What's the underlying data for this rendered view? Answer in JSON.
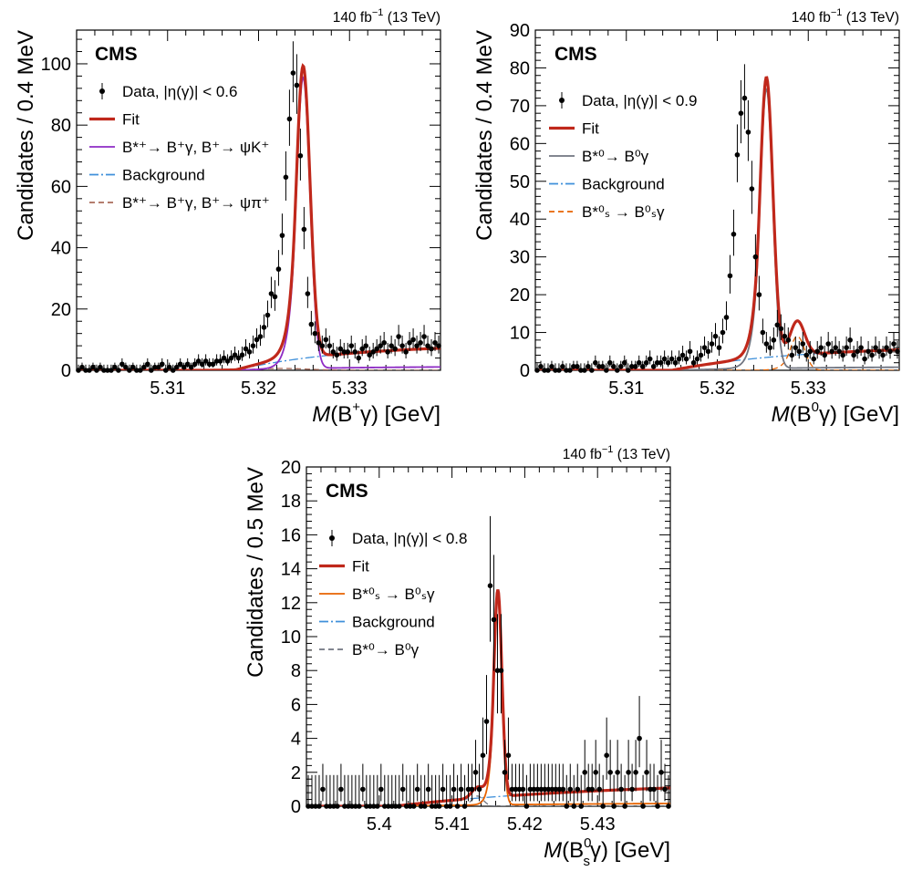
{
  "chart_data": [
    {
      "type": "scatter",
      "experiment": "CMS",
      "lumi": "140 fb",
      "lumi_sup": "−1",
      "lumi_suffix": "(13 TeV)",
      "xlabel": {
        "italic": "M",
        "pre": "(B",
        "sup": "+",
        "post": "γ) [GeV]"
      },
      "ylabel": "Candidates / 0.4 MeV",
      "xlim": [
        5.3,
        5.34
      ],
      "ylim": [
        0,
        111
      ],
      "x_ticks": [
        5.31,
        5.32,
        5.33
      ],
      "x_tick_labels": [
        "5.31",
        "5.32",
        "5.33"
      ],
      "y_ticks": [
        0,
        20,
        40,
        60,
        80,
        100
      ],
      "y_tick_labels": [
        "0",
        "20",
        "40",
        "60",
        "80",
        "100"
      ],
      "legend": [
        {
          "kind": "data",
          "color": "#000000",
          "text": "Data, |η(γ)| < 0.6"
        },
        {
          "kind": "solid-thick",
          "color": "#c0281b",
          "text": "Fit"
        },
        {
          "kind": "solid",
          "color": "#8e2bc4",
          "text": "B*⁺→ B⁺γ, B⁺→ ψK⁺"
        },
        {
          "kind": "dashdot",
          "color": "#3f90da",
          "text": "Background"
        },
        {
          "kind": "dashed",
          "color": "#a96b59",
          "text": "B*⁺→ B⁺γ, B⁺→ ψπ⁺"
        }
      ],
      "series": [
        {
          "name": "Data, |η(γ)| < 0.6",
          "x": [
            5.3002,
            5.3006,
            5.301,
            5.3014,
            5.3018,
            5.3022,
            5.3026,
            5.303,
            5.3034,
            5.3038,
            5.3042,
            5.3046,
            5.305,
            5.3054,
            5.3058,
            5.3062,
            5.3066,
            5.307,
            5.3074,
            5.3078,
            5.3082,
            5.3086,
            5.309,
            5.3094,
            5.3098,
            5.3102,
            5.3106,
            5.311,
            5.3114,
            5.3118,
            5.3122,
            5.3126,
            5.313,
            5.3134,
            5.3138,
            5.3142,
            5.3146,
            5.315,
            5.3154,
            5.3158,
            5.3162,
            5.3166,
            5.317,
            5.3174,
            5.3178,
            5.3182,
            5.3186,
            5.319,
            5.3194,
            5.3198,
            5.3202,
            5.3206,
            5.321,
            5.3214,
            5.3218,
            5.3222,
            5.3226,
            5.323,
            5.3234,
            5.3238,
            5.3242,
            5.3246,
            5.325,
            5.3254,
            5.3258,
            5.3262,
            5.3266,
            5.327,
            5.3274,
            5.3278,
            5.3282,
            5.3286,
            5.329,
            5.3294,
            5.3298,
            5.3302,
            5.3306,
            5.331,
            5.3314,
            5.3318,
            5.3322,
            5.3326,
            5.333,
            5.3334,
            5.3338,
            5.3342,
            5.3346,
            5.335,
            5.3354,
            5.3358,
            5.3362,
            5.3366,
            5.337,
            5.3374,
            5.3378,
            5.3382,
            5.3386,
            5.339,
            5.3394,
            5.3398
          ],
          "y": [
            0,
            1,
            0,
            0,
            1,
            0,
            1,
            0,
            0,
            0,
            1,
            0,
            2,
            1,
            0,
            1,
            0,
            0,
            1,
            2,
            0,
            1,
            1,
            2,
            0,
            1,
            0,
            1,
            2,
            1,
            2,
            1,
            2,
            3,
            2,
            3,
            2,
            2,
            3,
            3,
            4,
            3,
            4,
            5,
            4,
            5,
            7,
            6,
            8,
            10,
            11,
            14,
            18,
            25,
            24,
            33,
            44,
            63,
            82,
            97,
            93,
            70,
            46,
            25,
            15,
            12,
            9,
            8,
            10,
            8,
            6,
            5,
            7,
            6,
            6,
            8,
            6,
            4,
            7,
            8,
            5,
            6,
            7,
            8,
            9,
            6,
            8,
            7,
            11,
            8,
            6,
            9,
            10,
            8,
            9,
            11,
            8,
            7,
            9,
            8
          ]
        }
      ]
    },
    {
      "type": "scatter",
      "experiment": "CMS",
      "lumi": "140 fb",
      "lumi_sup": "−1",
      "lumi_suffix": "(13 TeV)",
      "xlabel": {
        "italic": "M",
        "pre": "(B",
        "sup": "0",
        "post": "γ) [GeV]"
      },
      "ylabel": "Candidates / 0.4 MeV",
      "xlim": [
        5.3,
        5.34
      ],
      "ylim": [
        0,
        90
      ],
      "x_ticks": [
        5.31,
        5.32,
        5.33
      ],
      "x_tick_labels": [
        "5.31",
        "5.32",
        "5.33"
      ],
      "y_ticks": [
        0,
        10,
        20,
        30,
        40,
        50,
        60,
        70,
        80,
        90
      ],
      "y_tick_labels": [
        "0",
        "10",
        "20",
        "30",
        "40",
        "50",
        "60",
        "70",
        "80",
        "90"
      ],
      "legend": [
        {
          "kind": "data",
          "color": "#000000",
          "text": "Data, |η(γ)| < 0.9"
        },
        {
          "kind": "solid-thick",
          "color": "#c0281b",
          "text": "Fit"
        },
        {
          "kind": "solid",
          "color": "#717581",
          "text": "B*⁰→ B⁰γ"
        },
        {
          "kind": "dashdot",
          "color": "#3f90da",
          "text": "Background"
        },
        {
          "kind": "dashed",
          "color": "#e76300",
          "text": "B*⁰ₛ → B⁰ₛγ"
        }
      ],
      "series": [
        {
          "name": "Data, |η(γ)| < 0.9",
          "x": [
            5.3002,
            5.3006,
            5.301,
            5.3014,
            5.3018,
            5.3022,
            5.3026,
            5.303,
            5.3034,
            5.3038,
            5.3042,
            5.3046,
            5.305,
            5.3054,
            5.3058,
            5.3062,
            5.3066,
            5.307,
            5.3074,
            5.3078,
            5.3082,
            5.3086,
            5.309,
            5.3094,
            5.3098,
            5.3102,
            5.3106,
            5.311,
            5.3114,
            5.3118,
            5.3122,
            5.3126,
            5.313,
            5.3134,
            5.3138,
            5.3142,
            5.3146,
            5.315,
            5.3154,
            5.3158,
            5.3162,
            5.3166,
            5.317,
            5.3174,
            5.3178,
            5.3182,
            5.3186,
            5.319,
            5.3194,
            5.3198,
            5.3202,
            5.3206,
            5.321,
            5.3214,
            5.3218,
            5.3222,
            5.3226,
            5.323,
            5.3234,
            5.3238,
            5.3242,
            5.3246,
            5.325,
            5.3254,
            5.3258,
            5.3262,
            5.3266,
            5.327,
            5.3274,
            5.3278,
            5.3282,
            5.3286,
            5.329,
            5.3294,
            5.3298,
            5.3302,
            5.3306,
            5.331,
            5.3314,
            5.3318,
            5.3322,
            5.3326,
            5.333,
            5.3334,
            5.3338,
            5.3342,
            5.3346,
            5.335,
            5.3354,
            5.3358,
            5.3362,
            5.3366,
            5.337,
            5.3374,
            5.3378,
            5.3382,
            5.3386,
            5.339,
            5.3394,
            5.3398
          ],
          "y": [
            0,
            1,
            0,
            0,
            1,
            0,
            0,
            1,
            0,
            0,
            1,
            1,
            0,
            0,
            1,
            0,
            2,
            1,
            1,
            0,
            2,
            1,
            0,
            1,
            2,
            0,
            1,
            1,
            2,
            1,
            2,
            3,
            1,
            2,
            2,
            3,
            2,
            3,
            2,
            3,
            4,
            3,
            5,
            2,
            3,
            4,
            6,
            5,
            7,
            9,
            6,
            10,
            14,
            25,
            36,
            57,
            68,
            72,
            63,
            48,
            30,
            20,
            10,
            7,
            6,
            8,
            12,
            11,
            9,
            8,
            4,
            6,
            5,
            7,
            4,
            5,
            3,
            5,
            6,
            4,
            7,
            5,
            6,
            5,
            4,
            6,
            8,
            4,
            5,
            6,
            3,
            5,
            4,
            6,
            5,
            4,
            6,
            5,
            7,
            5
          ]
        }
      ]
    },
    {
      "type": "scatter",
      "experiment": "CMS",
      "lumi": "140 fb",
      "lumi_sup": "−1",
      "lumi_suffix": "(13 TeV)",
      "xlabel": {
        "italic": "M",
        "pre": "(B",
        "sup": "0",
        "sub": "s",
        "post": "γ) [GeV]"
      },
      "ylabel": "Candidates / 0.5 MeV",
      "xlim": [
        5.39,
        5.44
      ],
      "ylim": [
        0,
        20
      ],
      "x_ticks": [
        5.4,
        5.41,
        5.42,
        5.43
      ],
      "x_tick_labels": [
        "5.4",
        "5.41",
        "5.42",
        "5.43"
      ],
      "y_ticks": [
        0,
        2,
        4,
        6,
        8,
        10,
        12,
        14,
        16,
        18,
        20
      ],
      "y_tick_labels": [
        "0",
        "2",
        "4",
        "6",
        "8",
        "10",
        "12",
        "14",
        "16",
        "18",
        "20"
      ],
      "legend": [
        {
          "kind": "data",
          "color": "#000000",
          "text": "Data, |η(γ)| < 0.8"
        },
        {
          "kind": "solid-thick",
          "color": "#c0281b",
          "text": "Fit"
        },
        {
          "kind": "solid",
          "color": "#e76300",
          "text": "B*⁰ₛ → B⁰ₛγ"
        },
        {
          "kind": "dashdot",
          "color": "#3f90da",
          "text": "Background"
        },
        {
          "kind": "dashed",
          "color": "#717581",
          "text": "B*⁰→ B⁰γ"
        }
      ],
      "series": [
        {
          "name": "Data, |η(γ)| < 0.8",
          "x": [
            5.39025,
            5.39075,
            5.39125,
            5.39175,
            5.39225,
            5.39275,
            5.39325,
            5.39375,
            5.39425,
            5.39475,
            5.39525,
            5.39575,
            5.39625,
            5.39675,
            5.39725,
            5.39775,
            5.39825,
            5.39875,
            5.39925,
            5.39975,
            5.40025,
            5.40075,
            5.40125,
            5.40175,
            5.40225,
            5.40275,
            5.40325,
            5.40375,
            5.40425,
            5.40475,
            5.40525,
            5.40575,
            5.40625,
            5.40675,
            5.40725,
            5.40775,
            5.40825,
            5.40875,
            5.40925,
            5.40975,
            5.41025,
            5.41075,
            5.41125,
            5.41175,
            5.41225,
            5.41275,
            5.41325,
            5.41375,
            5.41425,
            5.41475,
            5.41525,
            5.41575,
            5.41625,
            5.41675,
            5.41725,
            5.41775,
            5.41825,
            5.41875,
            5.41925,
            5.41975,
            5.42025,
            5.42075,
            5.42125,
            5.42175,
            5.42225,
            5.42275,
            5.42325,
            5.42375,
            5.42425,
            5.42475,
            5.42525,
            5.42575,
            5.42625,
            5.42675,
            5.42725,
            5.42775,
            5.42825,
            5.42875,
            5.42925,
            5.42975,
            5.43025,
            5.43075,
            5.43125,
            5.43175,
            5.43225,
            5.43275,
            5.43325,
            5.43375,
            5.43425,
            5.43475,
            5.43525,
            5.43575,
            5.43625,
            5.43675,
            5.43725,
            5.43775,
            5.43825,
            5.43875,
            5.43925,
            5.43975
          ],
          "y": [
            0,
            0,
            0,
            0,
            1,
            0,
            0,
            0,
            0,
            1,
            0,
            0,
            0,
            0,
            0,
            1,
            0,
            0,
            0,
            0,
            1,
            0,
            0,
            0,
            0,
            0,
            1,
            0,
            0,
            0,
            1,
            0,
            0,
            1,
            0,
            0,
            0,
            1,
            0,
            0,
            1,
            0,
            1,
            0,
            1,
            1,
            2,
            1,
            3,
            5,
            13,
            11,
            8,
            8,
            2,
            3,
            1,
            1,
            1,
            1,
            0,
            1,
            1,
            1,
            1,
            1,
            1,
            1,
            1,
            1,
            1,
            0,
            1,
            0,
            1,
            0,
            2,
            1,
            1,
            2,
            1,
            0,
            3,
            2,
            0,
            2,
            1,
            0,
            2,
            1,
            2,
            4,
            0,
            2,
            1,
            1,
            0,
            2,
            1,
            0
          ]
        }
      ]
    }
  ]
}
